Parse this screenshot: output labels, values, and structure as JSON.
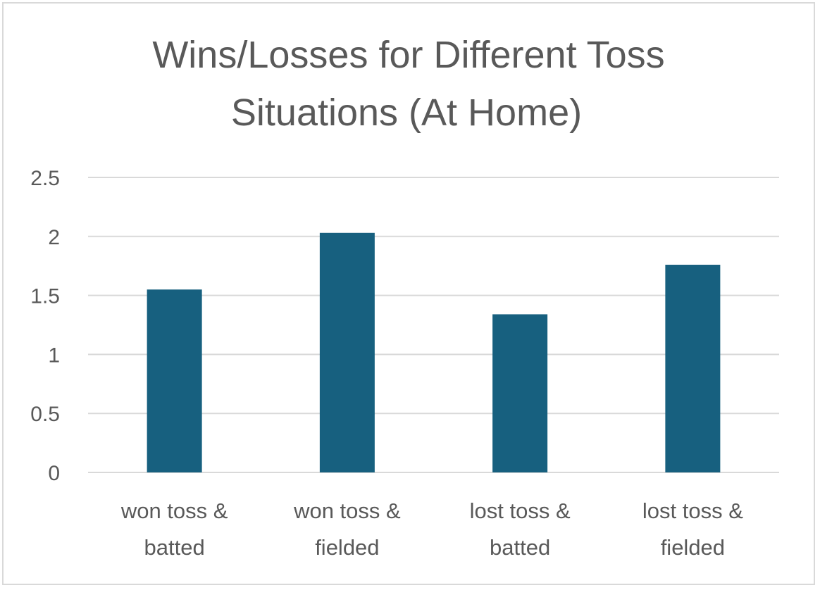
{
  "chart_data": {
    "type": "bar",
    "title_lines": [
      "Wins/Losses for Different Toss",
      "Situations  (At Home)"
    ],
    "categories": [
      [
        "won toss &",
        "batted"
      ],
      [
        "won toss &",
        "fielded"
      ],
      [
        "lost toss &",
        "batted"
      ],
      [
        "lost toss &",
        "fielded"
      ]
    ],
    "values": [
      1.55,
      2.03,
      1.34,
      1.76
    ],
    "ylim": [
      0,
      2.5
    ],
    "yticks": [
      "0",
      "0.5",
      "1",
      "1.5",
      "2",
      "2.5"
    ],
    "grid": true,
    "legend": "none",
    "bar_color": "#17607f",
    "grid_color": "#d9d9d9"
  }
}
